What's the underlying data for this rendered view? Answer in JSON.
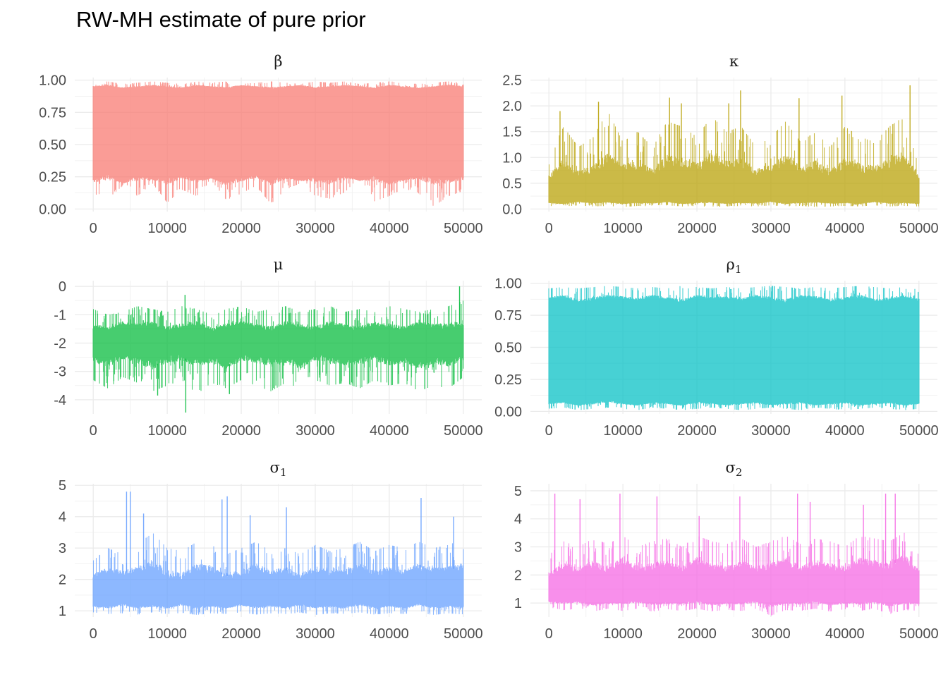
{
  "title": "RW-MH estimate of pure prior",
  "chart_data": [
    {
      "type": "line",
      "strip": {
        "symbol": "β",
        "sub": ""
      },
      "color": "#F8766D",
      "x_ticks": [
        0,
        10000,
        20000,
        30000,
        40000,
        50000
      ],
      "y_ticks": [
        {
          "value": 0,
          "label": "0.00"
        },
        {
          "value": 0.25,
          "label": "0.25"
        },
        {
          "value": 0.5,
          "label": "0.50"
        },
        {
          "value": 0.75,
          "label": "0.75"
        },
        {
          "value": 1,
          "label": "1.00"
        }
      ],
      "xlim": [
        -2500,
        52500
      ],
      "ylim": [
        -0.02,
        1.02
      ],
      "n_iter": 50000,
      "band": {
        "lower": [
          0.12,
          0.08,
          0.18,
          0.1,
          0.2,
          0.05,
          0.15,
          0.1,
          0.22,
          0.07,
          0.12,
          0.18,
          0.04,
          0.15,
          0.2,
          0.1,
          0.08,
          0.13,
          0.25,
          0.06,
          0.1,
          0.16,
          0.12,
          0.02,
          0.1,
          0.14
        ],
        "upper": [
          0.98,
          0.99,
          0.97,
          0.98,
          0.99,
          0.98,
          0.97,
          0.99,
          0.98,
          0.99,
          0.97,
          0.98,
          0.99,
          0.98,
          0.97,
          0.99,
          0.98,
          0.99,
          0.97,
          0.98,
          0.99,
          0.98,
          0.97,
          0.98,
          0.99,
          0.98
        ]
      },
      "typical": {
        "lower": [
          0.22,
          0.25,
          0.2,
          0.24,
          0.23,
          0.21,
          0.25,
          0.22,
          0.24,
          0.2,
          0.23,
          0.25,
          0.21,
          0.24,
          0.22,
          0.23,
          0.21,
          0.25,
          0.22,
          0.24,
          0.2,
          0.23,
          0.25,
          0.21,
          0.22,
          0.24
        ],
        "upper": [
          0.95,
          0.96,
          0.94,
          0.95,
          0.96,
          0.95,
          0.94,
          0.96,
          0.95,
          0.94,
          0.96,
          0.95,
          0.94,
          0.95,
          0.96,
          0.94,
          0.95,
          0.96,
          0.95,
          0.94,
          0.96,
          0.95,
          0.94,
          0.95,
          0.96,
          0.95
        ]
      },
      "peaks": []
    },
    {
      "type": "line",
      "strip": {
        "symbol": "κ",
        "sub": ""
      },
      "color": "#B79F00",
      "x_ticks": [
        0,
        10000,
        20000,
        30000,
        40000,
        50000
      ],
      "y_ticks": [
        {
          "value": 0,
          "label": "0.0"
        },
        {
          "value": 0.5,
          "label": "0.5"
        },
        {
          "value": 1,
          "label": "1.0"
        },
        {
          "value": 1.5,
          "label": "1.5"
        },
        {
          "value": 2,
          "label": "2.0"
        },
        {
          "value": 2.5,
          "label": "2.5"
        }
      ],
      "xlim": [
        -2500,
        52500
      ],
      "ylim": [
        -0.05,
        2.55
      ],
      "n_iter": 50000,
      "band": {
        "lower": [
          0.06,
          0.05,
          0.07,
          0.05,
          0.06,
          0.04,
          0.06,
          0.05,
          0.07,
          0.05,
          0.06,
          0.04,
          0.05,
          0.06,
          0.05,
          0.07,
          0.05,
          0.06,
          0.04,
          0.05,
          0.06,
          0.05,
          0.07,
          0.05,
          0.06,
          0.05
        ],
        "upper": [
          1.0,
          1.6,
          1.2,
          1.4,
          1.9,
          1.3,
          1.5,
          1.2,
          1.7,
          1.6,
          1.4,
          1.8,
          1.5,
          1.6,
          1.2,
          1.4,
          1.7,
          1.3,
          1.5,
          1.2,
          1.6,
          1.4,
          1.3,
          1.6,
          1.8,
          0.8
        ]
      },
      "typical": {
        "lower": [
          0.12,
          0.1,
          0.14,
          0.11,
          0.13,
          0.1,
          0.12,
          0.11,
          0.14,
          0.1,
          0.12,
          0.13,
          0.1,
          0.12,
          0.11,
          0.14,
          0.1,
          0.12,
          0.13,
          0.11,
          0.12,
          0.1,
          0.14,
          0.11,
          0.12,
          0.1
        ],
        "upper": [
          0.6,
          0.9,
          0.7,
          0.75,
          1.0,
          0.8,
          0.85,
          0.7,
          0.95,
          0.9,
          0.8,
          1.0,
          0.85,
          0.9,
          0.7,
          0.8,
          0.95,
          0.75,
          0.85,
          0.7,
          0.9,
          0.8,
          0.75,
          0.9,
          1.0,
          0.6
        ]
      },
      "peaks": [
        {
          "x": 1500,
          "y": 1.9
        },
        {
          "x": 6700,
          "y": 2.08
        },
        {
          "x": 16300,
          "y": 2.16
        },
        {
          "x": 17900,
          "y": 2.05
        },
        {
          "x": 24300,
          "y": 2.05
        },
        {
          "x": 25900,
          "y": 2.3
        },
        {
          "x": 33800,
          "y": 2.15
        },
        {
          "x": 39600,
          "y": 2.2
        },
        {
          "x": 48800,
          "y": 2.4
        }
      ]
    },
    {
      "type": "line",
      "strip": {
        "symbol": "μ",
        "sub": ""
      },
      "color": "#00BA38",
      "x_ticks": [
        0,
        10000,
        20000,
        30000,
        40000,
        50000
      ],
      "y_ticks": [
        {
          "value": -4,
          "label": "-4"
        },
        {
          "value": -3,
          "label": "-3"
        },
        {
          "value": -2,
          "label": "-2"
        },
        {
          "value": -1,
          "label": "-1"
        },
        {
          "value": 0,
          "label": "0"
        }
      ],
      "xlim": [
        -2500,
        52500
      ],
      "ylim": [
        -4.5,
        0.2
      ],
      "n_iter": 50000,
      "band": {
        "lower": [
          -3.3,
          -3.6,
          -3.2,
          -3.4,
          -3.7,
          -3.5,
          -3.3,
          -3.8,
          -3.4,
          -3.6,
          -3.3,
          -3.5,
          -3.7,
          -3.4,
          -3.6,
          -3.3,
          -3.5,
          -3.4,
          -3.6,
          -3.3,
          -3.5,
          -3.4,
          -3.7,
          -3.5,
          -3.6,
          -3.2
        ],
        "upper": [
          -0.8,
          -1.0,
          -0.9,
          -0.7,
          -0.8,
          -0.9,
          -0.7,
          -0.8,
          -1.0,
          -0.8,
          -0.7,
          -0.9,
          -0.8,
          -0.7,
          -0.9,
          -0.8,
          -0.7,
          -0.9,
          -0.8,
          -0.9,
          -0.7,
          -0.8,
          -0.9,
          -0.8,
          -0.7,
          -0.5
        ]
      },
      "typical": {
        "lower": [
          -2.6,
          -2.7,
          -2.5,
          -2.6,
          -2.8,
          -2.6,
          -2.5,
          -2.7,
          -2.6,
          -2.8,
          -2.5,
          -2.6,
          -2.7,
          -2.6,
          -2.8,
          -2.5,
          -2.6,
          -2.7,
          -2.6,
          -2.5,
          -2.7,
          -2.6,
          -2.8,
          -2.6,
          -2.7,
          -2.5
        ],
        "upper": [
          -1.4,
          -1.5,
          -1.3,
          -1.4,
          -1.3,
          -1.5,
          -1.4,
          -1.3,
          -1.5,
          -1.4,
          -1.3,
          -1.4,
          -1.5,
          -1.3,
          -1.4,
          -1.5,
          -1.3,
          -1.4,
          -1.5,
          -1.3,
          -1.4,
          -1.5,
          -1.3,
          -1.4,
          -1.4,
          -1.3
        ]
      },
      "peaks": [
        {
          "x": 12500,
          "y": -4.45
        },
        {
          "x": 8700,
          "y": -3.85
        },
        {
          "x": 18400,
          "y": -3.8
        },
        {
          "x": 49500,
          "y": 0.0
        },
        {
          "x": 12400,
          "y": -0.3
        }
      ]
    },
    {
      "type": "line",
      "strip": {
        "symbol": "ρ",
        "sub": "1"
      },
      "color": "#00BFC4",
      "x_ticks": [
        0,
        10000,
        20000,
        30000,
        40000,
        50000
      ],
      "y_ticks": [
        {
          "value": 0,
          "label": "0.00"
        },
        {
          "value": 0.25,
          "label": "0.25"
        },
        {
          "value": 0.5,
          "label": "0.50"
        },
        {
          "value": 0.75,
          "label": "0.75"
        },
        {
          "value": 1,
          "label": "1.00"
        }
      ],
      "xlim": [
        -2500,
        52500
      ],
      "ylim": [
        -0.02,
        1.02
      ],
      "n_iter": 50000,
      "band": {
        "lower": [
          0.02,
          0.03,
          0.01,
          0.02,
          0.03,
          0.02,
          0.01,
          0.03,
          0.02,
          0.01,
          0.02,
          0.03,
          0.02,
          0.01,
          0.02,
          0.03,
          0.02,
          0.01,
          0.03,
          0.02,
          0.01,
          0.02,
          0.03,
          0.02,
          0.01,
          0.02
        ],
        "upper": [
          0.96,
          0.97,
          0.96,
          0.97,
          0.98,
          0.97,
          0.96,
          0.97,
          0.96,
          0.98,
          0.97,
          0.96,
          0.97,
          0.96,
          0.97,
          0.98,
          0.97,
          0.96,
          0.97,
          0.96,
          0.97,
          0.98,
          0.97,
          0.96,
          0.97,
          0.95
        ]
      },
      "typical": {
        "lower": [
          0.06,
          0.07,
          0.05,
          0.06,
          0.08,
          0.06,
          0.05,
          0.07,
          0.06,
          0.05,
          0.07,
          0.06,
          0.05,
          0.06,
          0.07,
          0.05,
          0.06,
          0.07,
          0.05,
          0.06,
          0.07,
          0.05,
          0.06,
          0.07,
          0.05,
          0.06
        ],
        "upper": [
          0.88,
          0.9,
          0.86,
          0.88,
          0.9,
          0.89,
          0.87,
          0.9,
          0.88,
          0.86,
          0.9,
          0.88,
          0.89,
          0.87,
          0.9,
          0.88,
          0.86,
          0.9,
          0.89,
          0.87,
          0.88,
          0.9,
          0.86,
          0.88,
          0.9,
          0.87
        ]
      },
      "peaks": []
    },
    {
      "type": "line",
      "strip": {
        "symbol": "σ",
        "sub": "1"
      },
      "color": "#619CFF",
      "x_ticks": [
        0,
        10000,
        20000,
        30000,
        40000,
        50000
      ],
      "y_ticks": [
        {
          "value": 1,
          "label": "1"
        },
        {
          "value": 2,
          "label": "2"
        },
        {
          "value": 3,
          "label": "3"
        },
        {
          "value": 4,
          "label": "4"
        },
        {
          "value": 5,
          "label": "5"
        }
      ],
      "xlim": [
        -2500,
        52500
      ],
      "ylim": [
        0.8,
        5.05
      ],
      "n_iter": 50000,
      "band": {
        "lower": [
          0.95,
          0.9,
          0.92,
          0.88,
          0.95,
          0.9,
          0.93,
          0.87,
          0.92,
          0.9,
          0.95,
          0.88,
          0.92,
          0.9,
          0.94,
          0.87,
          0.92,
          0.9,
          0.95,
          0.88,
          0.92,
          0.9,
          0.93,
          0.87,
          0.92,
          0.88
        ],
        "upper": [
          2.6,
          3.0,
          2.8,
          3.1,
          3.5,
          3.0,
          2.9,
          3.2,
          3.1,
          2.8,
          3.0,
          3.2,
          2.9,
          3.0,
          2.8,
          3.1,
          2.9,
          3.0,
          3.2,
          2.9,
          3.1,
          3.0,
          3.2,
          3.0,
          3.1,
          3.3
        ]
      },
      "typical": {
        "lower": [
          1.15,
          1.1,
          1.2,
          1.1,
          1.15,
          1.1,
          1.2,
          1.1,
          1.15,
          1.1,
          1.2,
          1.1,
          1.15,
          1.1,
          1.2,
          1.1,
          1.15,
          1.1,
          1.2,
          1.1,
          1.15,
          1.1,
          1.2,
          1.1,
          1.15,
          1.1
        ],
        "upper": [
          2.1,
          2.3,
          2.2,
          2.3,
          2.5,
          2.2,
          2.1,
          2.4,
          2.3,
          2.1,
          2.2,
          2.4,
          2.2,
          2.3,
          2.1,
          2.3,
          2.2,
          2.2,
          2.4,
          2.2,
          2.3,
          2.2,
          2.4,
          2.3,
          2.3,
          2.4
        ]
      },
      "peaks": [
        {
          "x": 4500,
          "y": 4.8
        },
        {
          "x": 5000,
          "y": 4.8
        },
        {
          "x": 6800,
          "y": 4.1
        },
        {
          "x": 17400,
          "y": 4.55
        },
        {
          "x": 18100,
          "y": 4.65
        },
        {
          "x": 21200,
          "y": 4.05
        },
        {
          "x": 26100,
          "y": 4.3
        },
        {
          "x": 44300,
          "y": 4.6
        },
        {
          "x": 48700,
          "y": 4.0
        }
      ]
    },
    {
      "type": "line",
      "strip": {
        "symbol": "σ",
        "sub": "2"
      },
      "color": "#F564E3",
      "x_ticks": [
        0,
        10000,
        20000,
        30000,
        40000,
        50000
      ],
      "y_ticks": [
        {
          "value": 1,
          "label": "1"
        },
        {
          "value": 2,
          "label": "2"
        },
        {
          "value": 3,
          "label": "3"
        },
        {
          "value": 4,
          "label": "4"
        },
        {
          "value": 5,
          "label": "5"
        }
      ],
      "xlim": [
        -2500,
        52500
      ],
      "ylim": [
        0.5,
        5.25
      ],
      "n_iter": 50000,
      "band": {
        "lower": [
          0.85,
          0.75,
          0.8,
          0.7,
          0.8,
          0.72,
          0.8,
          0.7,
          0.78,
          0.72,
          0.8,
          0.7,
          0.76,
          0.72,
          0.8,
          0.55,
          0.75,
          0.72,
          0.8,
          0.7,
          0.78,
          0.72,
          0.8,
          0.6,
          0.75,
          0.72
        ],
        "upper": [
          2.7,
          3.2,
          3.0,
          3.3,
          3.1,
          3.4,
          3.0,
          3.2,
          3.3,
          3.0,
          3.4,
          3.2,
          3.1,
          3.3,
          3.0,
          3.2,
          3.4,
          3.1,
          3.3,
          3.2,
          3.0,
          3.4,
          3.3,
          3.2,
          3.5,
          2.8
        ]
      },
      "typical": {
        "lower": [
          1.05,
          1.0,
          1.05,
          0.95,
          1.0,
          0.98,
          1.05,
          0.95,
          1.0,
          0.98,
          1.05,
          0.95,
          1.0,
          0.98,
          1.05,
          0.9,
          1.0,
          0.98,
          1.05,
          0.95,
          1.0,
          0.98,
          1.05,
          0.92,
          1.0,
          0.98
        ],
        "upper": [
          2.0,
          2.3,
          2.2,
          2.4,
          2.2,
          2.5,
          2.2,
          2.3,
          2.4,
          2.2,
          2.5,
          2.3,
          2.2,
          2.4,
          2.2,
          2.3,
          2.5,
          2.2,
          2.4,
          2.3,
          2.2,
          2.5,
          2.4,
          2.3,
          2.6,
          2.1
        ]
      },
      "peaks": [
        {
          "x": 800,
          "y": 4.9
        },
        {
          "x": 4200,
          "y": 4.7
        },
        {
          "x": 9600,
          "y": 4.9
        },
        {
          "x": 14600,
          "y": 4.8
        },
        {
          "x": 20300,
          "y": 4.1
        },
        {
          "x": 25800,
          "y": 4.8
        },
        {
          "x": 33600,
          "y": 4.9
        },
        {
          "x": 35300,
          "y": 4.6
        },
        {
          "x": 42500,
          "y": 4.5
        },
        {
          "x": 45500,
          "y": 4.9
        },
        {
          "x": 46800,
          "y": 4.9
        }
      ]
    }
  ]
}
